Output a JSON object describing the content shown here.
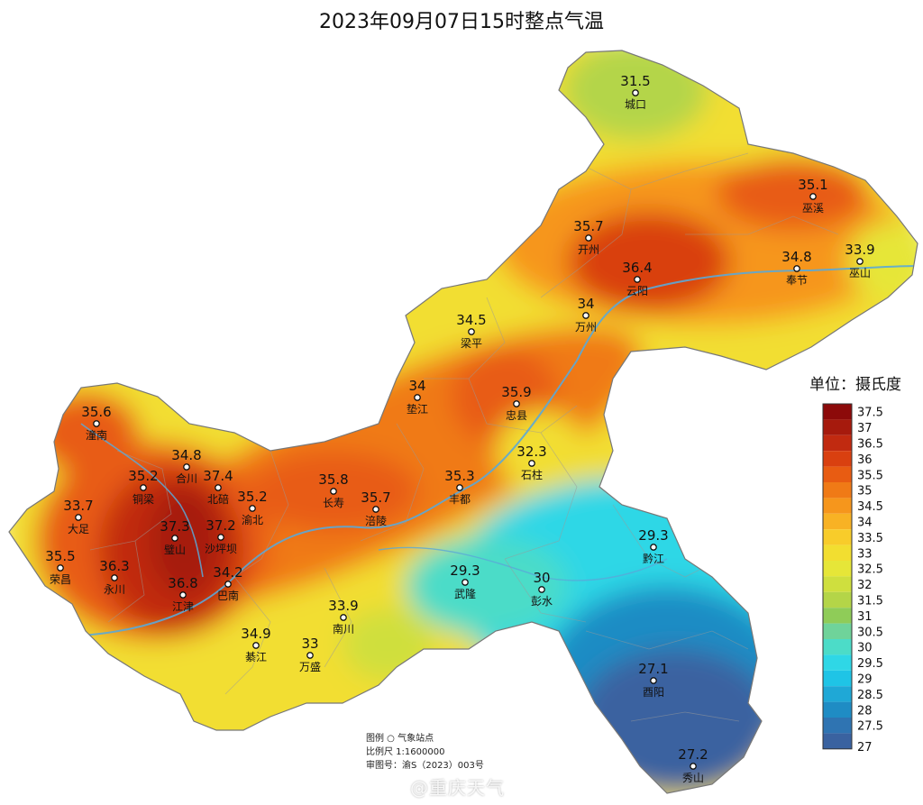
{
  "title": "2023年09月07日15时整点气温",
  "unit_label": "单位：摄氏度",
  "legend": {
    "levels": [
      "37.5",
      "37",
      "36.5",
      "36",
      "35.5",
      "35",
      "34.5",
      "34",
      "33.5",
      "33",
      "32.5",
      "32",
      "31.5",
      "31",
      "30.5",
      "30",
      "29.5",
      "29",
      "28.5",
      "28",
      "27.5",
      "27"
    ],
    "colors": [
      "#8c0a0a",
      "#a61a0d",
      "#c12a10",
      "#d94010",
      "#e85c12",
      "#f07a16",
      "#f6961c",
      "#f8b224",
      "#f8cc2a",
      "#f2de30",
      "#e6e638",
      "#cfdf3e",
      "#b4d548",
      "#8fcc58",
      "#6fd39a",
      "#4cdcc8",
      "#2fd7e6",
      "#1fc4e6",
      "#1fa8d6",
      "#1f8cc4",
      "#2f74b2",
      "#3a62a0"
    ]
  },
  "stations": [
    {
      "name": "城口",
      "value": "31.5"
    },
    {
      "name": "巫溪",
      "value": "35.1"
    },
    {
      "name": "开州",
      "value": "35.7"
    },
    {
      "name": "云阳",
      "value": "36.4"
    },
    {
      "name": "奉节",
      "value": "34.8"
    },
    {
      "name": "巫山",
      "value": "33.9"
    },
    {
      "name": "万州",
      "value": "34"
    },
    {
      "name": "梁平",
      "value": "34.5"
    },
    {
      "name": "垫江",
      "value": "34"
    },
    {
      "name": "忠县",
      "value": "35.9"
    },
    {
      "name": "石柱",
      "value": "32.3"
    },
    {
      "name": "潼南",
      "value": "35.6"
    },
    {
      "name": "合川",
      "value": "34.8"
    },
    {
      "name": "铜梁",
      "value": "35.2"
    },
    {
      "name": "北碚",
      "value": "37.4"
    },
    {
      "name": "渝北",
      "value": "35.2"
    },
    {
      "name": "长寿",
      "value": "35.8"
    },
    {
      "name": "涪陵",
      "value": "35.7"
    },
    {
      "name": "丰都",
      "value": "35.3"
    },
    {
      "name": "大足",
      "value": "33.7"
    },
    {
      "name": "璧山",
      "value": "37.3"
    },
    {
      "name": "沙坪坝",
      "value": "37.2"
    },
    {
      "name": "荣昌",
      "value": "35.5"
    },
    {
      "name": "永川",
      "value": "36.3"
    },
    {
      "name": "江津",
      "value": "36.8"
    },
    {
      "name": "巴南",
      "value": "34.2"
    },
    {
      "name": "南川",
      "value": "33.9"
    },
    {
      "name": "綦江",
      "value": "34.9"
    },
    {
      "name": "万盛",
      "value": "33"
    },
    {
      "name": "武隆",
      "value": "29.3"
    },
    {
      "name": "彭水",
      "value": "30"
    },
    {
      "name": "黔江",
      "value": "29.3"
    },
    {
      "name": "酉阳",
      "value": "27.1"
    },
    {
      "name": "秀山",
      "value": "27.2"
    }
  ],
  "footer": {
    "legend_line": "图例  ○ 气象站点",
    "scale_line": "比例尺  1:1600000",
    "approval_line": "审图号：渝S（2023）003号"
  },
  "watermark": "@重庆天气"
}
